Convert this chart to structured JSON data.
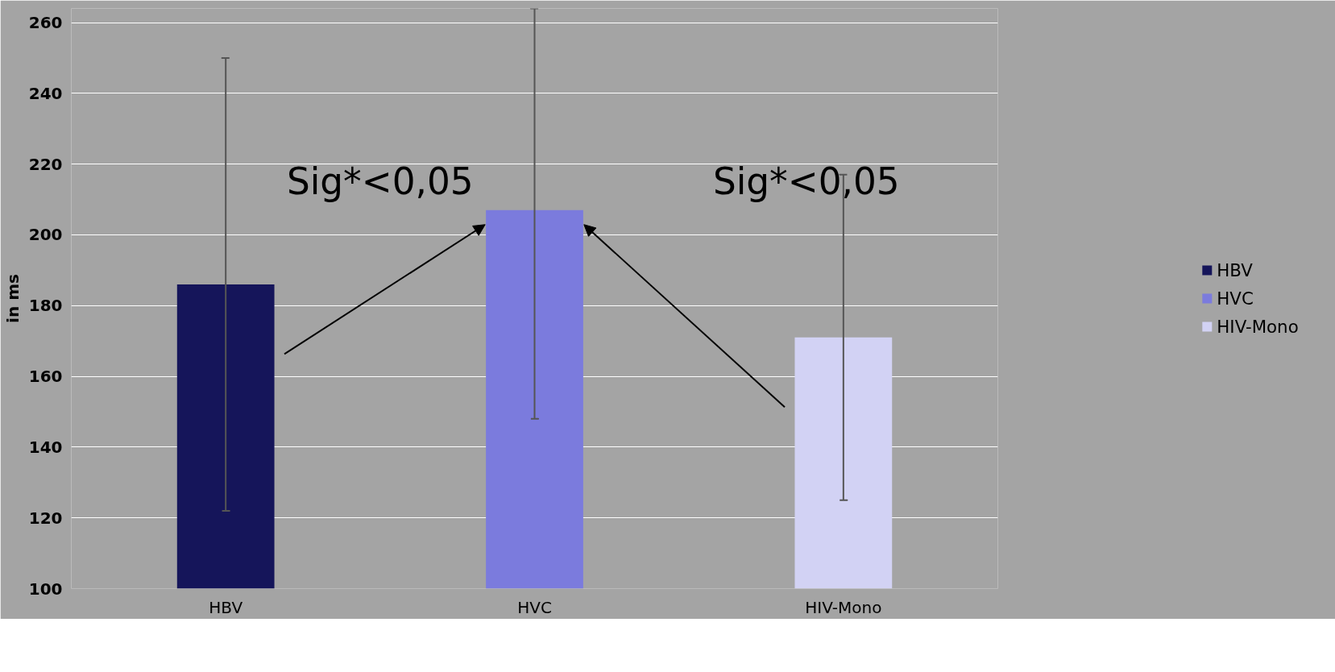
{
  "chart_data": {
    "type": "bar",
    "ylabel": "in ms",
    "categories": [
      "HBV",
      "HVC",
      "HIV-Mono"
    ],
    "series": [
      {
        "name": "HBV",
        "color": "#15155a",
        "values": [
          186,
          null,
          null
        ],
        "errors": [
          64,
          null,
          null
        ]
      },
      {
        "name": "HVC",
        "color": "#7b7bdd",
        "values": [
          null,
          207,
          null
        ],
        "errors": [
          null,
          [
            148,
            264
          ],
          null
        ]
      },
      {
        "name": "HIV-Mono",
        "color": "#d2d2f4",
        "values": [
          null,
          null,
          171
        ],
        "errors": [
          null,
          null,
          [
            125,
            217
          ]
        ]
      }
    ],
    "ylim": [
      100,
      264
    ],
    "yticks": [
      100,
      120,
      140,
      160,
      180,
      200,
      220,
      240,
      260
    ],
    "grid": "y",
    "legend": "right",
    "annotations": [
      "Sig*<0,05",
      "Sig*<0,05"
    ]
  }
}
